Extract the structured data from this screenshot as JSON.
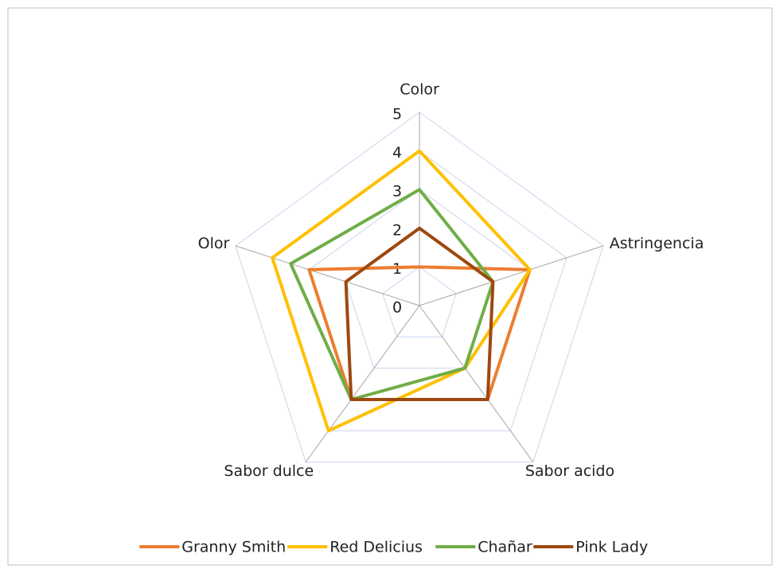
{
  "chart_data": {
    "type": "radar",
    "categories": [
      "Color",
      "Astringencia",
      "Sabor acido",
      "Sabor dulce",
      "Olor"
    ],
    "series": [
      {
        "name": "Granny Smith",
        "color": "#ed7d31",
        "values": [
          1,
          3,
          3,
          3,
          3
        ]
      },
      {
        "name": "Red Delicius",
        "color": "#ffc000",
        "values": [
          4,
          3,
          2,
          4,
          4
        ]
      },
      {
        "name": "Chañar",
        "color": "#70ad47",
        "values": [
          3,
          2,
          2,
          3,
          3.5
        ]
      },
      {
        "name": "Pink Lady",
        "color": "#9e480e",
        "values": [
          2,
          2,
          3,
          3,
          2
        ]
      }
    ],
    "ylim": [
      0,
      5
    ],
    "yticks": [
      0,
      1,
      2,
      3,
      4,
      5
    ],
    "grid": true,
    "legend": "bottom"
  }
}
